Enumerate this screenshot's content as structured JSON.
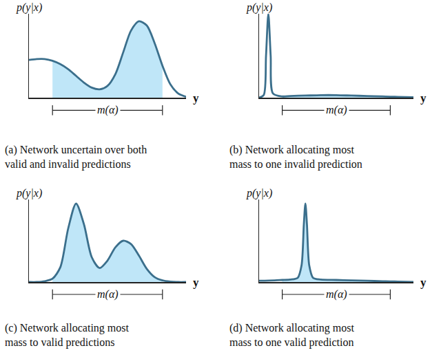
{
  "chart_data": [
    {
      "type": "line",
      "title": "(a) Network uncertain over both valid and invalid predictions",
      "xlabel": "y",
      "ylabel": "p(y|x)",
      "xlim": [
        0,
        10
      ],
      "ylim": [
        0,
        10
      ],
      "tick_labels": false,
      "grid": false,
      "color": "#3b6f8c",
      "x": [
        0,
        0.5,
        1,
        1.5,
        2,
        2.5,
        3,
        3.5,
        4,
        4.5,
        5,
        5.5,
        6,
        6.5,
        7,
        7.5,
        8,
        8.5,
        9,
        9.5,
        10
      ],
      "values": [
        4.5,
        4.6,
        4.6,
        4.4,
        4.0,
        3.4,
        2.6,
        1.8,
        1.2,
        1.0,
        1.4,
        2.8,
        5.4,
        8.0,
        9.1,
        8.6,
        6.5,
        3.8,
        1.6,
        0.5,
        0.1
      ],
      "interval": {
        "label": "m(α)",
        "values": [
          1.5,
          8.5
        ]
      }
    },
    {
      "type": "line",
      "title": "(b) Network allocating most mass to one invalid prediction",
      "xlabel": "y",
      "ylabel": "p(y|x)",
      "xlim": [
        0,
        10
      ],
      "ylim": [
        0,
        10
      ],
      "tick_labels": false,
      "grid": false,
      "color": "#3b6f8c",
      "x": [
        0,
        0.3,
        0.45,
        0.6,
        0.75,
        0.9,
        1.5,
        2,
        3,
        4,
        5,
        6,
        7,
        8,
        8.5,
        9,
        10
      ],
      "values": [
        0,
        0.3,
        5,
        10,
        5,
        0.5,
        0.15,
        0.2,
        0.25,
        0.3,
        0.3,
        0.25,
        0.2,
        0.15,
        0.12,
        0.1,
        0.05
      ],
      "interval": {
        "label": "m(α)",
        "values": [
          1.5,
          8.5
        ]
      }
    },
    {
      "type": "line",
      "title": "(c) Network allocating most mass to valid predictions",
      "xlabel": "y",
      "ylabel": "p(y|x)",
      "xlim": [
        0,
        10
      ],
      "ylim": [
        0,
        10
      ],
      "tick_labels": false,
      "grid": false,
      "color": "#3b6f8c",
      "x": [
        0,
        0.5,
        1,
        1.5,
        2,
        2.5,
        3,
        3.5,
        4,
        4.5,
        5,
        5.5,
        6,
        6.5,
        7,
        7.5,
        8,
        8.5,
        9,
        9.5,
        10
      ],
      "values": [
        0,
        0,
        0.1,
        0.4,
        1.8,
        6.5,
        9.5,
        7.0,
        3.0,
        1.7,
        2.6,
        4.2,
        5.0,
        4.6,
        3.2,
        1.6,
        0.6,
        0.2,
        0.05,
        0,
        0
      ],
      "interval": {
        "label": "m(α)",
        "values": [
          1.5,
          8.5
        ]
      }
    },
    {
      "type": "line",
      "title": "(d) Network allocating most mass to one valid prediction",
      "xlabel": "y",
      "ylabel": "p(y|x)",
      "xlim": [
        0,
        10
      ],
      "ylim": [
        0,
        10
      ],
      "tick_labels": false,
      "grid": false,
      "color": "#3b6f8c",
      "x": [
        0,
        1,
        1.5,
        2,
        2.5,
        2.75,
        2.9,
        3,
        3.1,
        3.25,
        3.5,
        4,
        5,
        6,
        7,
        8,
        8.5,
        9,
        10
      ],
      "values": [
        0.15,
        0.2,
        0.25,
        0.3,
        0.5,
        2,
        7,
        9.5,
        7,
        2,
        0.5,
        0.3,
        0.25,
        0.2,
        0.15,
        0.1,
        0.08,
        0.05,
        0
      ],
      "interval": {
        "label": "m(α)",
        "values": [
          1.5,
          8.5
        ]
      }
    }
  ]
}
